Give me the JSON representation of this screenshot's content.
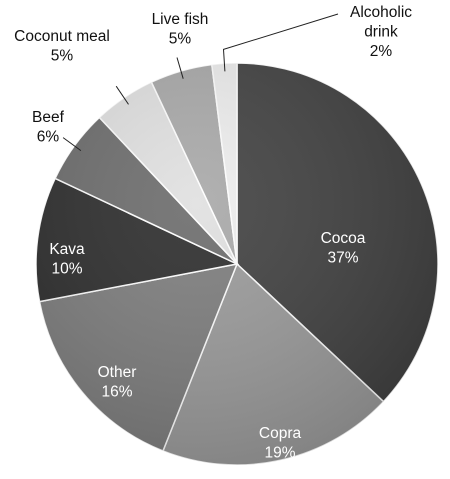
{
  "chart_data": {
    "type": "pie",
    "title": "",
    "start_angle_deg": 0,
    "direction": "clockwise",
    "slices": [
      {
        "label": "Cocoa",
        "value": 37,
        "value_label": "37%",
        "color": "#3f3f3f"
      },
      {
        "label": "Copra",
        "value": 19,
        "value_label": "19%",
        "color": "#9a9a9a"
      },
      {
        "label": "Other",
        "value": 16,
        "value_label": "16%",
        "color": "#7c7c7c"
      },
      {
        "label": "Kava",
        "value": 10,
        "value_label": "10%",
        "color": "#2b2b2b"
      },
      {
        "label": "Beef",
        "value": 6,
        "value_label": "6%",
        "color": "#6b6b6b"
      },
      {
        "label": "Coconut meal",
        "value": 5,
        "value_label": "5%",
        "color": "#e0e0e0"
      },
      {
        "label": "Live fish",
        "value": 5,
        "value_label": "5%",
        "color": "#a8a8a8"
      },
      {
        "label": "Alcoholic drink",
        "value": 2,
        "value_label": "2%",
        "color": "#ededed"
      }
    ]
  }
}
